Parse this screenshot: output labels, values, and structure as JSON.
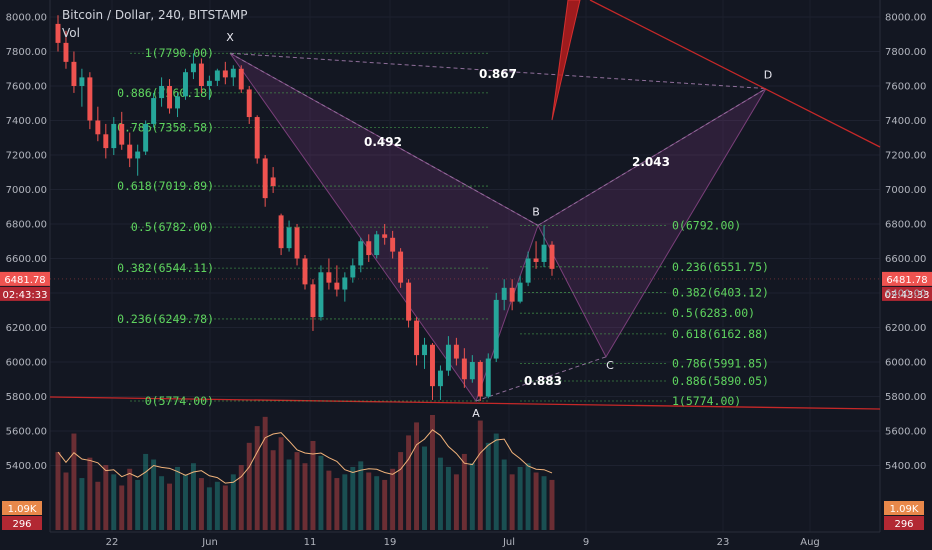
{
  "header": {
    "title": "Bitcoin / Dollar, 240, BITSTAMP",
    "vol_label": "Vol"
  },
  "chart_data": {
    "type": "candlestick",
    "price_axis": {
      "ticks": [
        8000,
        7800,
        7600,
        7400,
        7200,
        7000,
        6800,
        6600,
        6400,
        6200,
        6000,
        5800,
        5600,
        5400
      ],
      "tick_labels": [
        "8000.00",
        "7800.00",
        "7600.00",
        "7400.00",
        "7200.00",
        "7000.00",
        "6800.00",
        "6600.00",
        "6400.00",
        "6200.00",
        "6000.00",
        "5800.00",
        "5600.00",
        "5400.00"
      ],
      "range": [
        5300,
        8100
      ]
    },
    "time_axis": {
      "labels": [
        "22",
        "Jun",
        "11",
        "19",
        "Jul",
        "9",
        "23",
        "Aug"
      ]
    },
    "current_price": {
      "label": "6481.78",
      "value": 6481.78,
      "countdown": "02:43:33",
      "color": "#ef5350"
    },
    "volume": {
      "value_label": "1.09K",
      "ma_label": "296"
    },
    "harmonic_pattern": {
      "points": [
        {
          "name": "X",
          "price": 7790
        },
        {
          "name": "A",
          "price": 5774
        },
        {
          "name": "B",
          "price": 6792
        },
        {
          "name": "C",
          "price": 6030
        },
        {
          "name": "D",
          "price": 7585
        }
      ],
      "ratios": [
        "0.867",
        "0.492",
        "2.043",
        "0.883"
      ]
    },
    "fib_left": [
      {
        "label": "1(7790.00)",
        "price": 7790.0
      },
      {
        "label": "0.886(7560.18)",
        "price": 7560.18
      },
      {
        "label": "0.786(7358.58)",
        "price": 7358.58
      },
      {
        "label": "0.618(7019.89)",
        "price": 7019.89
      },
      {
        "label": "0.5(6782.00)",
        "price": 6782.0
      },
      {
        "label": "0.382(6544.11)",
        "price": 6544.11
      },
      {
        "label": "0.236(6249.78)",
        "price": 6249.78
      },
      {
        "label": "0(5774.00)",
        "price": 5774.0
      }
    ],
    "fib_right": [
      {
        "label": "0(6792.00)",
        "price": 6792.0
      },
      {
        "label": "0.236(6551.75)",
        "price": 6551.75
      },
      {
        "label": "0.382(6403.12)",
        "price": 6403.12
      },
      {
        "label": "0.5(6283.00)",
        "price": 6283.0
      },
      {
        "label": "0.618(6162.88)",
        "price": 6162.88
      },
      {
        "label": "0.786(5991.85)",
        "price": 5991.85
      },
      {
        "label": "0.886(5890.05)",
        "price": 5890.05
      },
      {
        "label": "1(5774.00)",
        "price": 5774.0
      }
    ],
    "candles": [
      [
        7960,
        8010,
        7800,
        7850
      ],
      [
        7850,
        7920,
        7700,
        7740
      ],
      [
        7740,
        7800,
        7560,
        7600
      ],
      [
        7600,
        7700,
        7480,
        7650
      ],
      [
        7650,
        7680,
        7350,
        7400
      ],
      [
        7400,
        7480,
        7280,
        7320
      ],
      [
        7320,
        7380,
        7180,
        7240
      ],
      [
        7240,
        7420,
        7200,
        7380
      ],
      [
        7380,
        7450,
        7230,
        7260
      ],
      [
        7260,
        7330,
        7130,
        7180
      ],
      [
        7180,
        7260,
        7080,
        7220
      ],
      [
        7220,
        7400,
        7200,
        7380
      ],
      [
        7380,
        7560,
        7360,
        7530
      ],
      [
        7530,
        7650,
        7480,
        7600
      ],
      [
        7600,
        7640,
        7440,
        7470
      ],
      [
        7470,
        7560,
        7420,
        7540
      ],
      [
        7540,
        7700,
        7520,
        7680
      ],
      [
        7680,
        7790,
        7640,
        7730
      ],
      [
        7730,
        7760,
        7560,
        7600
      ],
      [
        7600,
        7660,
        7520,
        7630
      ],
      [
        7630,
        7700,
        7600,
        7690
      ],
      [
        7690,
        7740,
        7610,
        7650
      ],
      [
        7650,
        7720,
        7600,
        7700
      ],
      [
        7700,
        7720,
        7560,
        7580
      ],
      [
        7580,
        7600,
        7380,
        7420
      ],
      [
        7420,
        7430,
        7150,
        7180
      ],
      [
        7180,
        7200,
        6900,
        6950
      ],
      [
        7070,
        7130,
        6980,
        7020
      ],
      [
        6850,
        6860,
        6620,
        6660
      ],
      [
        6660,
        6820,
        6640,
        6780
      ],
      [
        6780,
        6800,
        6560,
        6600
      ],
      [
        6600,
        6620,
        6420,
        6450
      ],
      [
        6450,
        6480,
        6180,
        6260
      ],
      [
        6260,
        6560,
        6240,
        6520
      ],
      [
        6520,
        6600,
        6420,
        6460
      ],
      [
        6460,
        6560,
        6380,
        6420
      ],
      [
        6420,
        6520,
        6350,
        6490
      ],
      [
        6490,
        6600,
        6460,
        6560
      ],
      [
        6560,
        6720,
        6520,
        6700
      ],
      [
        6700,
        6740,
        6580,
        6620
      ],
      [
        6620,
        6760,
        6600,
        6740
      ],
      [
        6740,
        6800,
        6680,
        6720
      ],
      [
        6720,
        6760,
        6600,
        6640
      ],
      [
        6640,
        6660,
        6430,
        6460
      ],
      [
        6460,
        6480,
        6200,
        6240
      ],
      [
        6240,
        6260,
        5980,
        6040
      ],
      [
        6040,
        6140,
        5960,
        6100
      ],
      [
        6100,
        6110,
        5780,
        5860
      ],
      [
        5860,
        5980,
        5780,
        5950
      ],
      [
        5950,
        6150,
        5920,
        6100
      ],
      [
        6100,
        6140,
        5980,
        6020
      ],
      [
        6020,
        6080,
        5850,
        5900
      ],
      [
        5900,
        6040,
        5880,
        6000
      ],
      [
        6000,
        6010,
        5774,
        5800
      ],
      [
        5800,
        6050,
        5790,
        6020
      ],
      [
        6020,
        6400,
        6000,
        6360
      ],
      [
        6360,
        6480,
        6300,
        6430
      ],
      [
        6430,
        6480,
        6300,
        6350
      ],
      [
        6350,
        6500,
        6340,
        6460
      ],
      [
        6460,
        6640,
        6440,
        6600
      ],
      [
        6600,
        6700,
        6540,
        6580
      ],
      [
        6580,
        6792,
        6550,
        6680
      ],
      [
        6680,
        6700,
        6500,
        6540
      ]
    ],
    "volumes": [
      420,
      310,
      520,
      280,
      390,
      260,
      350,
      300,
      240,
      330,
      270,
      410,
      380,
      290,
      250,
      340,
      300,
      360,
      280,
      230,
      260,
      240,
      300,
      350,
      470,
      560,
      610,
      430,
      500,
      380,
      420,
      360,
      480,
      400,
      320,
      280,
      300,
      340,
      370,
      310,
      290,
      270,
      330,
      420,
      510,
      580,
      450,
      620,
      390,
      340,
      300,
      410,
      360,
      590,
      470,
      520,
      380,
      300,
      340,
      360,
      310,
      290,
      270
    ]
  }
}
